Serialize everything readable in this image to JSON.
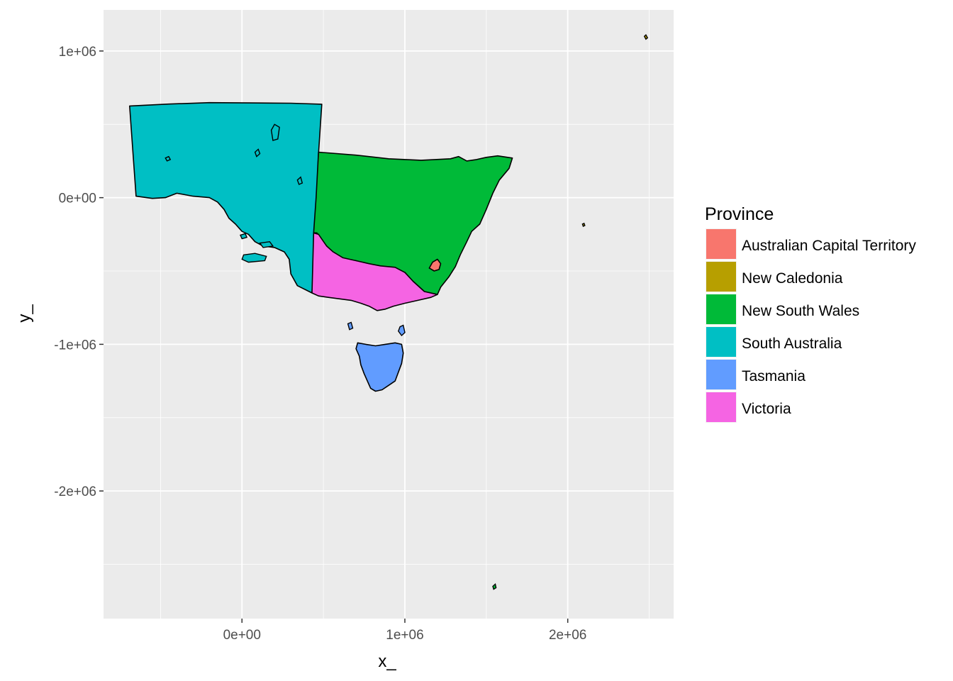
{
  "chart_data": {
    "type": "map",
    "xlabel": "x_",
    "ylabel": "y_",
    "xlim": [
      -850000,
      2650000
    ],
    "ylim": [
      -2870000,
      1280000
    ],
    "x_ticks": [
      {
        "value": 0,
        "label": "0e+00"
      },
      {
        "value": 1000000,
        "label": "1e+06"
      },
      {
        "value": 2000000,
        "label": "2e+06"
      }
    ],
    "y_ticks": [
      {
        "value": 1000000,
        "label": "1e+06"
      },
      {
        "value": 0,
        "label": "0e+00"
      },
      {
        "value": -1000000,
        "label": "-1e+06"
      },
      {
        "value": -2000000,
        "label": "-2e+06"
      }
    ],
    "grid": true,
    "legend": {
      "title": "Province",
      "placement": "right",
      "entries": [
        {
          "name": "Australian Capital Territory",
          "color": "#F8766D"
        },
        {
          "name": "New Caledonia",
          "color": "#B79F00"
        },
        {
          "name": "New South Wales",
          "color": "#00BA38"
        },
        {
          "name": "South Australia",
          "color": "#00BFC4"
        },
        {
          "name": "Tasmania",
          "color": "#619CFF"
        },
        {
          "name": "Victoria",
          "color": "#F564E3"
        }
      ]
    },
    "regions": [
      {
        "name": "South Australia",
        "color": "#00BFC4",
        "points": [
          [
            -690000,
            625000
          ],
          [
            -450000,
            638000
          ],
          [
            -200000,
            648000
          ],
          [
            50000,
            646000
          ],
          [
            300000,
            644000
          ],
          [
            490000,
            637000
          ],
          [
            470000,
            300000
          ],
          [
            450000,
            -200000
          ],
          [
            430000,
            -650000
          ],
          [
            340000,
            -600000
          ],
          [
            300000,
            -520000
          ],
          [
            290000,
            -420000
          ],
          [
            260000,
            -370000
          ],
          [
            200000,
            -340000
          ],
          [
            130000,
            -330000
          ],
          [
            80000,
            -300000
          ],
          [
            40000,
            -250000
          ],
          [
            0,
            -230000
          ],
          [
            -40000,
            -180000
          ],
          [
            -80000,
            -140000
          ],
          [
            -110000,
            -80000
          ],
          [
            -150000,
            -30000
          ],
          [
            -200000,
            0
          ],
          [
            -300000,
            10000
          ],
          [
            -400000,
            30000
          ],
          [
            -470000,
            0
          ],
          [
            -550000,
            -5000
          ],
          [
            -650000,
            10000
          ]
        ]
      },
      {
        "name": "New South Wales",
        "color": "#00BA38",
        "points": [
          [
            470000,
            310000
          ],
          [
            700000,
            290000
          ],
          [
            900000,
            265000
          ],
          [
            1100000,
            255000
          ],
          [
            1280000,
            265000
          ],
          [
            1330000,
            280000
          ],
          [
            1380000,
            250000
          ],
          [
            1440000,
            260000
          ],
          [
            1500000,
            275000
          ],
          [
            1570000,
            285000
          ],
          [
            1660000,
            270000
          ],
          [
            1640000,
            200000
          ],
          [
            1580000,
            120000
          ],
          [
            1540000,
            30000
          ],
          [
            1500000,
            -80000
          ],
          [
            1460000,
            -180000
          ],
          [
            1410000,
            -230000
          ],
          [
            1380000,
            -300000
          ],
          [
            1340000,
            -390000
          ],
          [
            1310000,
            -470000
          ],
          [
            1270000,
            -540000
          ],
          [
            1220000,
            -610000
          ],
          [
            1200000,
            -660000
          ],
          [
            1120000,
            -640000
          ],
          [
            1050000,
            -570000
          ],
          [
            1000000,
            -510000
          ],
          [
            940000,
            -480000
          ],
          [
            850000,
            -470000
          ],
          [
            780000,
            -460000
          ],
          [
            700000,
            -430000
          ],
          [
            620000,
            -420000
          ],
          [
            540000,
            -360000
          ],
          [
            460000,
            -240000
          ],
          [
            440000,
            -240000
          ],
          [
            455000,
            0
          ]
        ]
      },
      {
        "name": "Victoria",
        "color": "#F564E3",
        "points": [
          [
            440000,
            -240000
          ],
          [
            470000,
            -250000
          ],
          [
            520000,
            -330000
          ],
          [
            560000,
            -370000
          ],
          [
            620000,
            -410000
          ],
          [
            700000,
            -430000
          ],
          [
            780000,
            -450000
          ],
          [
            850000,
            -465000
          ],
          [
            940000,
            -475000
          ],
          [
            1000000,
            -510000
          ],
          [
            1050000,
            -570000
          ],
          [
            1120000,
            -640000
          ],
          [
            1200000,
            -660000
          ],
          [
            1160000,
            -680000
          ],
          [
            1080000,
            -700000
          ],
          [
            1000000,
            -720000
          ],
          [
            930000,
            -740000
          ],
          [
            880000,
            -760000
          ],
          [
            830000,
            -770000
          ],
          [
            780000,
            -740000
          ],
          [
            730000,
            -720000
          ],
          [
            670000,
            -700000
          ],
          [
            600000,
            -690000
          ],
          [
            530000,
            -680000
          ],
          [
            470000,
            -670000
          ],
          [
            430000,
            -650000
          ]
        ]
      },
      {
        "name": "Tasmania",
        "color": "#619CFF",
        "points": [
          [
            710000,
            -990000
          ],
          [
            760000,
            -1000000
          ],
          [
            820000,
            -1010000
          ],
          [
            880000,
            -1000000
          ],
          [
            940000,
            -990000
          ],
          [
            980000,
            -1000000
          ],
          [
            990000,
            -1060000
          ],
          [
            980000,
            -1130000
          ],
          [
            960000,
            -1190000
          ],
          [
            940000,
            -1250000
          ],
          [
            900000,
            -1280000
          ],
          [
            860000,
            -1310000
          ],
          [
            820000,
            -1320000
          ],
          [
            790000,
            -1300000
          ],
          [
            770000,
            -1250000
          ],
          [
            750000,
            -1200000
          ],
          [
            730000,
            -1140000
          ],
          [
            720000,
            -1080000
          ],
          [
            700000,
            -1030000
          ]
        ]
      },
      {
        "name": "Australian Capital Territory",
        "color": "#F8766D",
        "points": [
          [
            1170000,
            -440000
          ],
          [
            1200000,
            -420000
          ],
          [
            1220000,
            -450000
          ],
          [
            1210000,
            -490000
          ],
          [
            1180000,
            -500000
          ],
          [
            1150000,
            -480000
          ]
        ]
      }
    ],
    "islands": [
      {
        "color": "#00BFC4",
        "points": [
          [
            80000,
            310000
          ],
          [
            100000,
            330000
          ],
          [
            110000,
            300000
          ],
          [
            90000,
            280000
          ]
        ]
      },
      {
        "color": "#00BFC4",
        "points": [
          [
            180000,
            460000
          ],
          [
            200000,
            500000
          ],
          [
            230000,
            480000
          ],
          [
            220000,
            400000
          ],
          [
            190000,
            390000
          ]
        ]
      },
      {
        "color": "#00BFC4",
        "points": [
          [
            10000,
            -390000
          ],
          [
            80000,
            -380000
          ],
          [
            150000,
            -400000
          ],
          [
            140000,
            -430000
          ],
          [
            40000,
            -440000
          ],
          [
            0,
            -420000
          ]
        ]
      },
      {
        "color": "#00BFC4",
        "points": [
          [
            -470000,
            270000
          ],
          [
            -450000,
            280000
          ],
          [
            -440000,
            260000
          ],
          [
            -460000,
            250000
          ]
        ]
      },
      {
        "color": "#00BFC4",
        "points": [
          [
            340000,
            120000
          ],
          [
            360000,
            140000
          ],
          [
            370000,
            100000
          ],
          [
            350000,
            90000
          ]
        ]
      },
      {
        "color": "#00BFC4",
        "points": [
          [
            110000,
            -310000
          ],
          [
            170000,
            -300000
          ],
          [
            190000,
            -330000
          ],
          [
            130000,
            -340000
          ]
        ]
      },
      {
        "color": "#00BFC4",
        "points": [
          [
            -10000,
            -255000
          ],
          [
            20000,
            -245000
          ],
          [
            30000,
            -270000
          ],
          [
            0,
            -280000
          ]
        ]
      },
      {
        "color": "#619CFF",
        "points": [
          [
            650000,
            -860000
          ],
          [
            670000,
            -850000
          ],
          [
            680000,
            -890000
          ],
          [
            660000,
            -900000
          ]
        ]
      },
      {
        "color": "#619CFF",
        "points": [
          [
            970000,
            -880000
          ],
          [
            990000,
            -870000
          ],
          [
            1000000,
            -920000
          ],
          [
            980000,
            -940000
          ],
          [
            960000,
            -910000
          ]
        ]
      },
      {
        "color": "#B79F00",
        "points": [
          [
            2470000,
            1100000
          ],
          [
            2480000,
            1110000
          ],
          [
            2490000,
            1090000
          ],
          [
            2480000,
            1080000
          ]
        ]
      },
      {
        "color": "#B79F00",
        "points": [
          [
            2090000,
            -180000
          ],
          [
            2100000,
            -175000
          ],
          [
            2105000,
            -190000
          ],
          [
            2095000,
            -195000
          ]
        ]
      },
      {
        "color": "#00BA38",
        "points": [
          [
            1540000,
            -2650000
          ],
          [
            1555000,
            -2635000
          ],
          [
            1560000,
            -2660000
          ],
          [
            1545000,
            -2670000
          ]
        ]
      }
    ]
  }
}
